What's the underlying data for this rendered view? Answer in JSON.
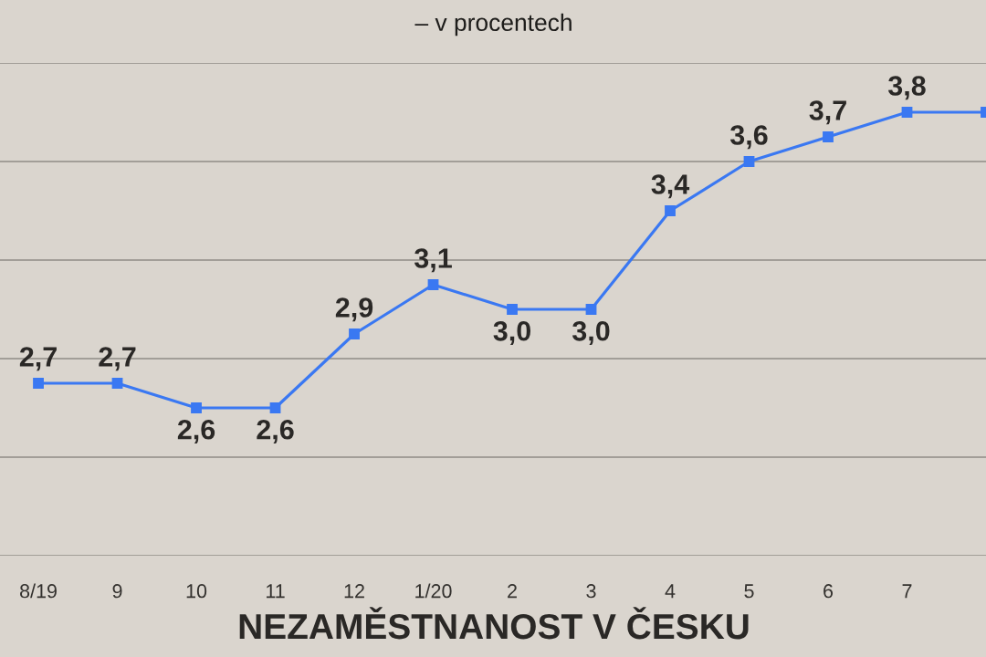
{
  "chart_data": {
    "type": "line",
    "title": "NEZAMĚSTNANOST V ČESKU",
    "subtitle": "– v procentech",
    "categories": [
      "8/19",
      "9",
      "10",
      "11",
      "12",
      "1/20",
      "2",
      "3",
      "4",
      "5",
      "6",
      "7",
      null
    ],
    "values": [
      2.7,
      2.7,
      2.6,
      2.6,
      2.9,
      3.1,
      3.0,
      3.0,
      3.4,
      3.6,
      3.7,
      3.8,
      3.8
    ],
    "value_labels": [
      "2,7",
      "2,7",
      "2,6",
      "2,6",
      "2,9",
      "3,1",
      "3,0",
      "3,0",
      "3,4",
      "3,6",
      "3,7",
      "3,8",
      null
    ],
    "color": "#3a78f2",
    "ylim": [
      2.0,
      4.0
    ],
    "yticks": [
      {
        "value": 2.0,
        "label": null
      },
      {
        "value": 2.4,
        "label": null
      },
      {
        "value": 2.8,
        "label": null
      },
      {
        "value": 3.2,
        "label": null
      },
      {
        "value": 3.6,
        "label": null
      },
      {
        "value": 4.0,
        "label": null
      }
    ],
    "grid": "y",
    "tick_labels": "x",
    "marker": "square",
    "line_style": "solid"
  }
}
